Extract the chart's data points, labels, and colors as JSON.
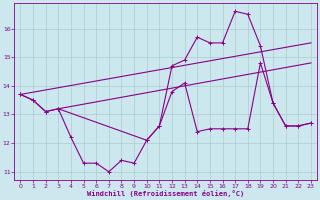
{
  "xlabel": "Windchill (Refroidissement éolien,°C)",
  "background_color": "#cce8ee",
  "grid_color": "#aacccc",
  "line_color": "#880088",
  "xlim": [
    -0.5,
    23.5
  ],
  "ylim": [
    10.7,
    16.9
  ],
  "yticks": [
    11,
    12,
    13,
    14,
    15,
    16
  ],
  "xticks": [
    0,
    1,
    2,
    3,
    4,
    5,
    6,
    7,
    8,
    9,
    10,
    11,
    12,
    13,
    14,
    15,
    16,
    17,
    18,
    19,
    20,
    21,
    22,
    23
  ],
  "curve1_x": [
    0,
    1,
    2,
    3,
    4,
    5,
    6,
    7,
    8,
    9,
    10,
    11,
    12,
    13,
    14,
    15,
    16,
    17,
    18,
    19,
    20,
    21,
    22,
    23
  ],
  "curve1_y": [
    13.7,
    13.5,
    13.1,
    13.2,
    12.2,
    11.3,
    11.3,
    11.0,
    11.4,
    11.3,
    12.1,
    12.6,
    13.8,
    14.1,
    12.4,
    12.5,
    12.5,
    12.5,
    12.5,
    14.8,
    13.4,
    12.6,
    12.6,
    12.7
  ],
  "curve2_x": [
    0,
    1,
    2,
    3,
    10,
    11,
    12,
    13,
    14,
    15,
    16,
    17,
    18,
    19,
    20,
    21,
    22,
    23
  ],
  "curve2_y": [
    13.7,
    13.5,
    13.1,
    13.2,
    12.1,
    12.6,
    14.7,
    14.9,
    15.7,
    15.5,
    15.5,
    16.6,
    16.5,
    15.4,
    13.4,
    12.6,
    12.6,
    12.7
  ],
  "line3_x": [
    0,
    23
  ],
  "line3_y": [
    13.7,
    15.5
  ],
  "line4_x": [
    3,
    23
  ],
  "line4_y": [
    13.2,
    14.8
  ]
}
